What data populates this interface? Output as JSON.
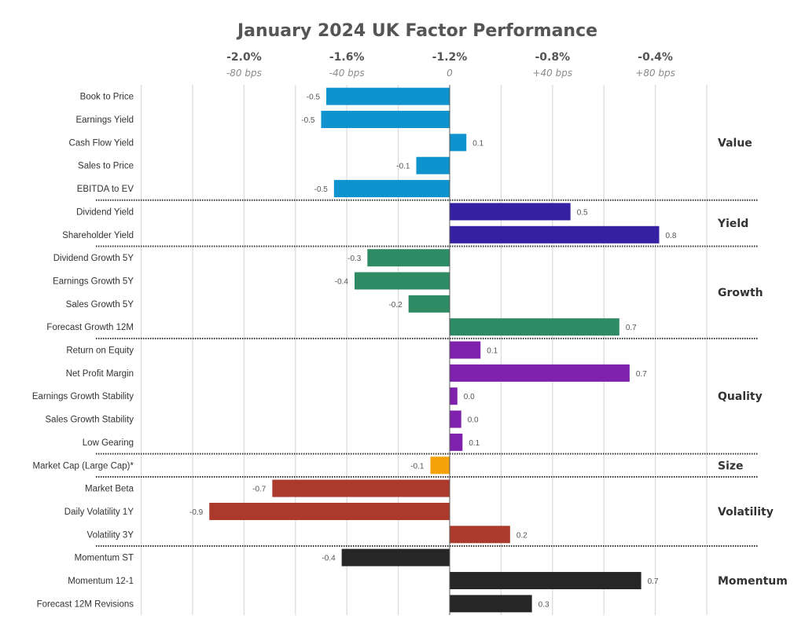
{
  "chart_data": {
    "type": "bar",
    "orientation": "horizontal",
    "title": "January 2024 UK Factor Performance",
    "xlabel": "",
    "ylabel": "",
    "xlim": [
      -1.08,
      1.0
    ],
    "grid": true,
    "top_axis_ticks": [
      {
        "value": -0.8,
        "pct_label": "-2.0%",
        "bps_label": "-80 bps"
      },
      {
        "value": -0.4,
        "pct_label": "-1.6%",
        "bps_label": "-40 bps"
      },
      {
        "value": 0.0,
        "pct_label": "-1.2%",
        "bps_label": "0"
      },
      {
        "value": 0.4,
        "pct_label": "-0.8%",
        "bps_label": "+40 bps"
      },
      {
        "value": 0.8,
        "pct_label": "-0.4%",
        "bps_label": "+80 bps"
      }
    ],
    "groups": [
      {
        "name": "Value",
        "color": "#0e93cf",
        "items": [
          {
            "label": "Book to Price",
            "value": -0.48,
            "display": "-0.5"
          },
          {
            "label": "Earnings Yield",
            "value": -0.5,
            "display": "-0.5"
          },
          {
            "label": "Cash Flow Yield",
            "value": 0.065,
            "display": "0.1"
          },
          {
            "label": "Sales to Price",
            "value": -0.13,
            "display": "-0.1"
          },
          {
            "label": "EBITDA to EV",
            "value": -0.45,
            "display": "-0.5"
          }
        ]
      },
      {
        "name": "Yield",
        "color": "#3520a3",
        "items": [
          {
            "label": "Dividend Yield",
            "value": 0.47,
            "display": "0.5"
          },
          {
            "label": "Shareholder Yield",
            "value": 0.815,
            "display": "0.8"
          }
        ]
      },
      {
        "name": "Growth",
        "color": "#2e8b63",
        "items": [
          {
            "label": "Dividend Growth 5Y",
            "value": -0.32,
            "display": "-0.3"
          },
          {
            "label": "Earnings Growth 5Y",
            "value": -0.37,
            "display": "-0.4"
          },
          {
            "label": "Sales Growth 5Y",
            "value": -0.16,
            "display": "-0.2"
          },
          {
            "label": "Forecast Growth 12M",
            "value": 0.66,
            "display": "0.7"
          }
        ]
      },
      {
        "name": "Quality",
        "color": "#7e22ae",
        "items": [
          {
            "label": "Return on Equity",
            "value": 0.12,
            "display": "0.1"
          },
          {
            "label": "Net Profit Margin",
            "value": 0.7,
            "display": "0.7"
          },
          {
            "label": "Earnings Growth Stability",
            "value": 0.03,
            "display": "0.0"
          },
          {
            "label": "Sales Growth Stability",
            "value": 0.045,
            "display": "0.0"
          },
          {
            "label": "Low Gearing",
            "value": 0.05,
            "display": "0.1"
          }
        ]
      },
      {
        "name": "Size",
        "color": "#f5a20a",
        "items": [
          {
            "label": "Market Cap (Large Cap)*",
            "value": -0.075,
            "display": "-0.1"
          }
        ]
      },
      {
        "name": "Volatility",
        "color": "#ab3a2c",
        "items": [
          {
            "label": "Market Beta",
            "value": -0.69,
            "display": "-0.7"
          },
          {
            "label": "Daily Volatility 1Y",
            "value": -0.935,
            "display": "-0.9"
          },
          {
            "label": "Volatility 3Y",
            "value": 0.235,
            "display": "0.2"
          }
        ]
      },
      {
        "name": "Momentum",
        "color": "#262626",
        "items": [
          {
            "label": "Momentum ST",
            "value": -0.42,
            "display": "-0.4"
          },
          {
            "label": "Momentum 12-1",
            "value": 0.745,
            "display": "0.7"
          },
          {
            "label": "Forecast 12M Revisions",
            "value": 0.32,
            "display": "0.3"
          }
        ]
      }
    ]
  }
}
